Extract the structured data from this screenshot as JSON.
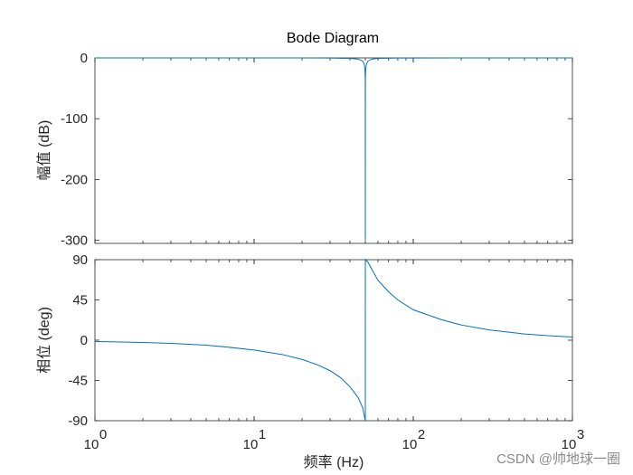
{
  "chart_data": [
    {
      "type": "line",
      "panel": "magnitude",
      "title": "Bode Diagram",
      "ylabel": "幅值 (dB)",
      "xscale": "log",
      "xlim": [
        1,
        1000
      ],
      "ylim": [
        -305,
        0
      ],
      "yticks": [
        0,
        -100,
        -200,
        -300
      ],
      "ytick_labels": [
        "0",
        "-100",
        "-200",
        "-300"
      ],
      "grid": false,
      "series": [
        {
          "color": "#0072bd",
          "x": [
            1,
            2,
            5,
            10,
            20,
            30,
            40,
            45,
            48,
            49,
            49.5,
            49.8,
            49.95,
            50,
            50.05,
            50.2,
            50.5,
            51,
            52,
            55,
            60,
            80,
            100,
            200,
            500,
            1000
          ],
          "y": [
            0,
            0,
            0,
            0,
            0,
            -0.2,
            -0.8,
            -2,
            -5,
            -9,
            -14,
            -22,
            -35,
            -300,
            -35,
            -22,
            -14,
            -9,
            -5,
            -2,
            -0.8,
            -0.2,
            -0.1,
            0,
            0,
            0
          ]
        }
      ]
    },
    {
      "type": "line",
      "panel": "phase",
      "xlabel": "频率  (Hz)",
      "ylabel": "相位 (deg)",
      "xscale": "log",
      "xlim": [
        1,
        1000
      ],
      "ylim": [
        -90,
        90
      ],
      "yticks": [
        90,
        45,
        0,
        -45,
        -90
      ],
      "ytick_labels": [
        "90",
        "45",
        "0",
        "-45",
        "-90"
      ],
      "xticks": [
        1,
        10,
        100,
        1000
      ],
      "xtick_labels": [
        {
          "base": "10",
          "exp": "0"
        },
        {
          "base": "10",
          "exp": "1"
        },
        {
          "base": "10",
          "exp": "2"
        },
        {
          "base": "10",
          "exp": "3"
        }
      ],
      "grid": false,
      "series": [
        {
          "color": "#0072bd",
          "x": [
            1,
            2,
            3,
            5,
            7,
            10,
            15,
            20,
            25,
            30,
            35,
            40,
            45,
            48,
            49.99,
            50,
            50.01,
            52,
            55,
            60,
            70,
            80,
            100,
            150,
            200,
            300,
            500,
            700,
            1000
          ],
          "y": [
            -1.5,
            -2.5,
            -3.5,
            -5.5,
            -8,
            -11,
            -16,
            -21.5,
            -27.5,
            -34,
            -42,
            -52,
            -64,
            -75,
            -90,
            0,
            90,
            87,
            79,
            67,
            54,
            45,
            34,
            23,
            17,
            11.5,
            7,
            5,
            3.5
          ]
        }
      ]
    }
  ],
  "watermark": "CSDN @帅地球一圈"
}
